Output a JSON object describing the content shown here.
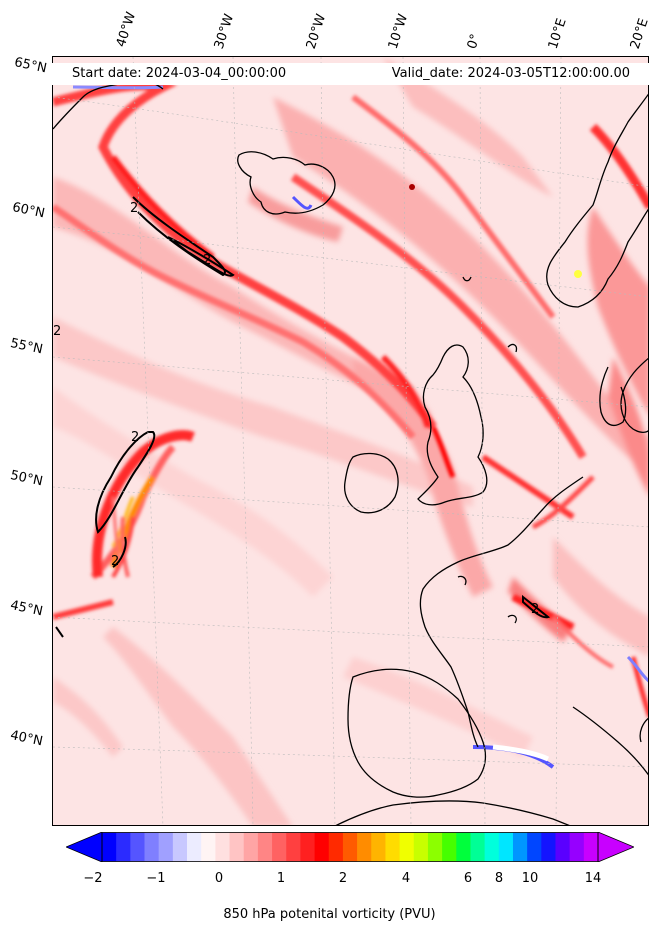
{
  "header": {
    "start_date": "Start date: 2024-03-04_00:00:00",
    "valid_date": "Valid_date: 2024-03-05T12:00:00.00"
  },
  "longitude_labels": [
    "40°W",
    "30°W",
    "20°W",
    "10°W",
    "0°",
    "10°E",
    "20°E"
  ],
  "latitude_labels": [
    "65°N",
    "60°N",
    "55°N",
    "50°N",
    "45°N",
    "40°N"
  ],
  "contour_labels": [
    "2",
    "2",
    "2",
    "2",
    "2",
    "2"
  ],
  "colorbar": {
    "label": "850 hPa potenital vorticity (PVU)",
    "ticks": [
      "−2",
      "−1",
      "0",
      "1",
      "2",
      "4",
      "6",
      "8",
      "10",
      "14"
    ],
    "colors": [
      "#0000ff",
      "#2b2bff",
      "#5555ff",
      "#7f7fff",
      "#a0a0ff",
      "#c8c8ff",
      "#ececff",
      "#fff4f4",
      "#ffe0e0",
      "#ffc4c4",
      "#ffa5a5",
      "#ff8585",
      "#ff6262",
      "#ff4040",
      "#ff2020",
      "#ff0000",
      "#ff2a00",
      "#ff5a00",
      "#ff8c00",
      "#ffb400",
      "#ffdc00",
      "#f0ff00",
      "#c8ff00",
      "#8cff00",
      "#46ff00",
      "#00ff3c",
      "#00ff96",
      "#00ffdc",
      "#00e6ff",
      "#0096ff",
      "#0046ff",
      "#1414ff",
      "#5a00ff",
      "#9600ff",
      "#c800ff"
    ]
  }
}
